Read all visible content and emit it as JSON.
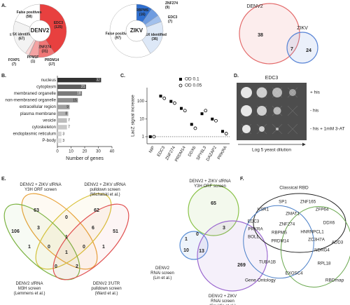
{
  "panel_labels": [
    "A.",
    "B.",
    "C.",
    "D.",
    "E.",
    "F."
  ],
  "chart_data": [
    {
      "type": "pie",
      "center_label": "DENV2",
      "categories": [
        "EDC3",
        "ZNF274",
        "PRDM14",
        "PPM1F",
        "FOXP1",
        "≤ 5X identified",
        "False positives"
      ],
      "values": [
        125,
        31,
        17,
        1,
        7,
        67,
        58
      ],
      "value_labels": [
        "(125)",
        "(31)",
        "(17)",
        "(1)",
        "(7)",
        "(67)",
        "(58)"
      ],
      "colors": [
        "#e8403f",
        "#f07676",
        "#f4a3a3",
        "#f7c4c4",
        "#fad9d9",
        "#f3f3f3",
        "#ffffff"
      ]
    },
    {
      "type": "pie",
      "center_label": "ZIKV",
      "categories": [
        "RBPMS",
        "ZNF274",
        "EDC3",
        "≤ 5X identified",
        "False positives"
      ],
      "values": [
        16,
        9,
        7,
        36,
        97
      ],
      "value_labels": [
        "(16)",
        "(9)",
        "(7)",
        "(36)",
        "(97)"
      ],
      "colors": [
        "#2f6fd0",
        "#6f9ce0",
        "#a2c0ec",
        "#dde8f7",
        "#ffffff"
      ]
    },
    {
      "type": "venn",
      "sets": [
        {
          "name": [
            "DENV2"
          ],
          "color": "#e36b6b"
        },
        {
          "name": [
            "ZIKV"
          ],
          "color": "#5b86d6"
        }
      ],
      "regions": [
        38,
        7,
        24
      ]
    },
    {
      "type": "bar",
      "orientation": "horizontal",
      "categories": [
        "nucleus",
        "cytoplasm",
        "membraned organelle",
        "non-membraned organelle",
        "extracellular region",
        "plasma membrane",
        "vesicle",
        "cytoskeleton",
        "endoplasmic reticulum",
        "P-body"
      ],
      "values": [
        32,
        21,
        18,
        15,
        9,
        8,
        7,
        7,
        3,
        3
      ],
      "colors": [
        "#333333",
        "#5e5e5e",
        "#7a7a7a",
        "#8e8e8e",
        "#a0a0a0",
        "#b0b0b0",
        "#bdbdbd",
        "#c8c8c8",
        "#d2d2d2",
        "#dcdcdc"
      ],
      "xlim": [
        0,
        40
      ],
      "xticks": [
        0,
        10,
        20,
        30,
        40
      ],
      "xlabel": "Number of genes"
    },
    {
      "type": "dot",
      "log_y": true,
      "ylabel": "LacZ signal increase",
      "categories": [
        "NIP",
        "EDC3",
        "ZNF274",
        "PRDM14",
        "DDX6",
        "SPY6L3",
        "DAZAP2",
        "PRKRA"
      ],
      "series": [
        {
          "name": "OD 0.1",
          "marker": "square",
          "color": "#000000",
          "values": [
            1,
            200,
            100,
            40,
            5,
            20,
            10,
            2
          ]
        },
        {
          "name": "OD 0.05",
          "marker": "circle",
          "color": "#000000",
          "values": [
            1,
            150,
            80,
            30,
            3,
            30,
            8,
            1.5
          ]
        }
      ],
      "ylim": [
        0.4,
        600
      ],
      "yticks": [
        1,
        10,
        100
      ],
      "reference_line": 1
    },
    {
      "type": "venn",
      "sets": [
        {
          "name": [
            "DENV2 + ZIKV sfRNA",
            "Y3H ORF screen"
          ],
          "color": "#e8a23a"
        },
        {
          "name": [
            "DENV2 + ZIKV sfRNA",
            "pulldown screen",
            "(Michalski et al.)"
          ],
          "color": "#d9c23a"
        },
        {
          "name": [
            "DENV2 sfRNA",
            "M3H screen",
            "(Lemmens et al.)"
          ],
          "color": "#7cb342"
        },
        {
          "name": [
            "DENV2 3'UTR",
            "pulldown screen",
            "(Ward et al.)"
          ],
          "color": "#e05050"
        }
      ],
      "regions": [
        63,
        62,
        0,
        106,
        3,
        1,
        6,
        51,
        1,
        0,
        1,
        0,
        1,
        0,
        2
      ]
    },
    {
      "type": "venn",
      "sets": [
        {
          "name": [
            "DENV2 + ZIKV sfRNA",
            "Y3H ORF screen"
          ],
          "color": "#8bc34a"
        },
        {
          "name": [
            "DENV2",
            "RNAi screen",
            "(Lin et al.)"
          ],
          "color": "#5b8fd6"
        },
        {
          "name": [
            "DENV2 + ZIKV",
            "RNAi screen",
            "(Savidis et al.)"
          ],
          "color": "#9c6ad0"
        }
      ],
      "regions": [
        65,
        3,
        1,
        0,
        10,
        13,
        269
      ]
    }
  ],
  "yeast_assay": {
    "title": "EDC3",
    "conditions": [
      "+ his",
      "- his",
      "- his + 1mM 3-AT"
    ],
    "axis_label": "Log 5 yeast dilution"
  },
  "gene_venn": {
    "sets": [
      {
        "name": "Classical RBD",
        "color": "#222222"
      },
      {
        "name": "Gene Ontology",
        "color": "#4a7fc8"
      },
      {
        "name": "RBDmap",
        "color": "#6aa84f"
      }
    ],
    "genes": [
      "SP1",
      "ZNF165",
      "KSR1",
      "ZMAT1",
      "ZFP64",
      "EDC3",
      "ZNF274",
      "DDX6",
      "PRKRA",
      "HNRNPCL1",
      "BOLL",
      "RBPMS",
      "ZC3H7A",
      "PRDM14",
      "ADD3",
      "NDRG4",
      "TUBA1B",
      "RPL18",
      "EXOSC4"
    ]
  }
}
